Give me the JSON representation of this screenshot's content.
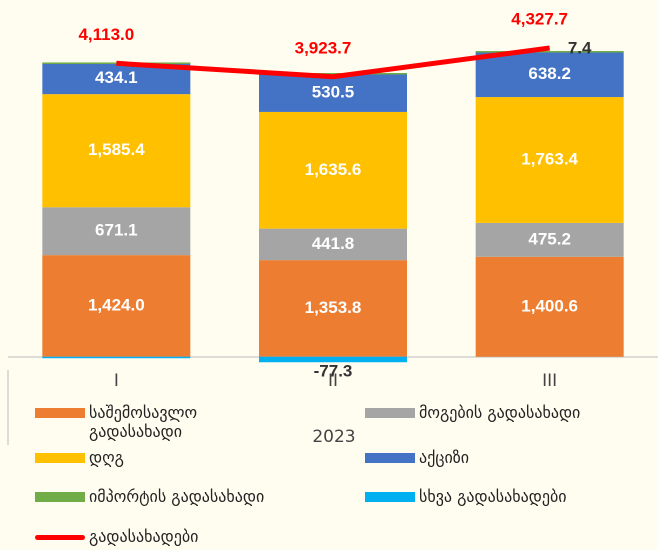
{
  "chart_data": {
    "type": "bar",
    "categories": [
      "I",
      "II",
      "III"
    ],
    "group_label": "2023",
    "ylim": [
      -200,
      5000
    ],
    "stacked": true,
    "series": [
      {
        "name": "საშემოსავლო გადასახადი",
        "color": "#ED7D31",
        "values": [
          1424.0,
          1353.8,
          1400.6
        ],
        "value_labels": [
          "1,424.0",
          "1,353.8",
          "1,400.6"
        ]
      },
      {
        "name": "მოგების გადასახადი",
        "color": "#A5A5A5",
        "values": [
          671.1,
          441.8,
          475.2
        ],
        "value_labels": [
          "671.1",
          "441.8",
          "475.2"
        ]
      },
      {
        "name": "დღგ",
        "color": "#FFC000",
        "values": [
          1585.4,
          1635.6,
          1763.4
        ],
        "value_labels": [
          "1,585.4",
          "1,635.6",
          "1,763.4"
        ]
      },
      {
        "name": "აქციზი",
        "color": "#4472C4",
        "values": [
          434.1,
          530.5,
          638.2
        ],
        "value_labels": [
          "434.1",
          "530.5",
          "638.2"
        ]
      },
      {
        "name": "იმპორტის გადასახადი",
        "color": "#70AD47",
        "values": [
          10,
          15,
          7.4
        ],
        "value_labels": [
          null,
          null,
          "7.4"
        ]
      },
      {
        "name": "სხვა გადასახადები",
        "color": "#00B0F0",
        "values": [
          -10,
          -77.3,
          0
        ],
        "value_labels": [
          null,
          "-77.3",
          null
        ]
      },
      {
        "name": "გადასახადები",
        "type": "line",
        "color": "#FF0000",
        "values": [
          4113.0,
          3923.7,
          4327.7
        ],
        "value_labels": [
          "4,113.0",
          "3,923.7",
          "4,327.7"
        ]
      }
    ]
  }
}
